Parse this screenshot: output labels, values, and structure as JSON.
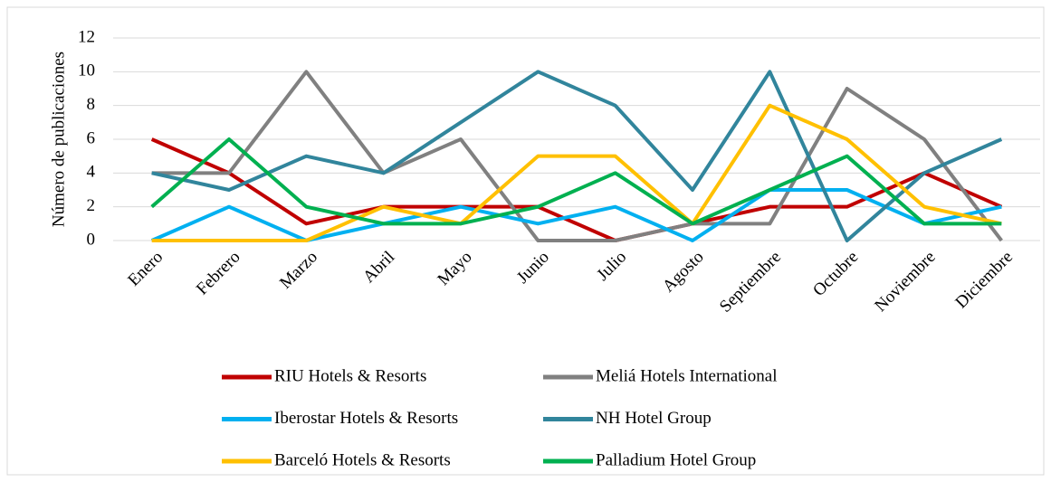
{
  "chart_data": {
    "type": "line",
    "y_label": "Número de publicaciones",
    "categories": [
      "Enero",
      "Febrero",
      "Marzo",
      "Abril",
      "Mayo",
      "Junio",
      "Julio",
      "Agosto",
      "Septiembre",
      "Octubre",
      "Noviembre",
      "Diciembre"
    ],
    "series": [
      {
        "name": "RIU Hotels & Resorts",
        "color": "#c00000",
        "values": [
          6,
          4,
          1,
          2,
          2,
          2,
          0,
          1,
          2,
          2,
          4,
          2
        ]
      },
      {
        "name": "Meliá Hotels International",
        "color": "#808080",
        "values": [
          4,
          4,
          10,
          4,
          6,
          0,
          0,
          1,
          1,
          9,
          6,
          0
        ]
      },
      {
        "name": "Iberostar Hotels & Resorts",
        "color": "#00b0f0",
        "values": [
          0,
          2,
          0,
          1,
          2,
          1,
          2,
          0,
          3,
          3,
          1,
          2
        ]
      },
      {
        "name": "NH Hotel Group",
        "color": "#31859c",
        "values": [
          4,
          3,
          5,
          4,
          7,
          10,
          8,
          3,
          10,
          0,
          4,
          6
        ]
      },
      {
        "name": "Barceló Hotels & Resorts",
        "color": "#ffc000",
        "values": [
          0,
          0,
          0,
          2,
          1,
          5,
          5,
          1,
          8,
          6,
          2,
          1
        ]
      },
      {
        "name": "Palladium Hotel Group",
        "color": "#00b050",
        "values": [
          2,
          6,
          2,
          1,
          1,
          2,
          4,
          1,
          3,
          5,
          1,
          1
        ]
      }
    ],
    "ylim": [
      0,
      12
    ],
    "yticks": [
      0,
      2,
      4,
      6,
      8,
      10,
      12
    ],
    "grid": true,
    "legend": "bottom"
  }
}
